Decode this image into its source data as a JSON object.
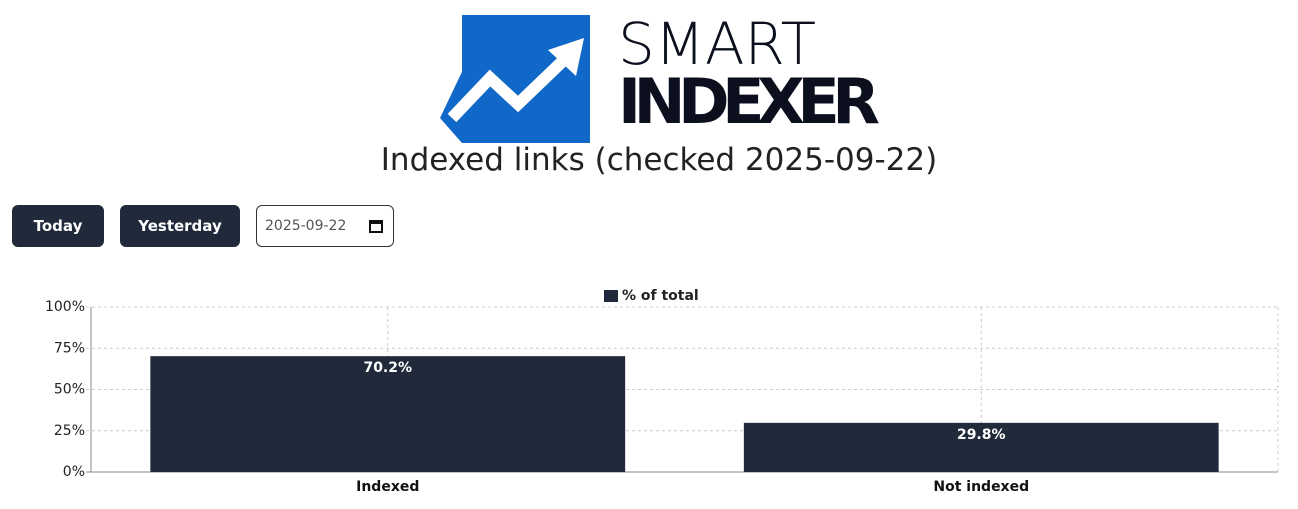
{
  "header": {
    "logo_top": "SMART",
    "logo_bottom": "INDEXER",
    "title": "Indexed links (checked 2025-09-22)"
  },
  "controls": {
    "today": "Today",
    "yesterday": "Yesterday",
    "date": "2025-09-22"
  },
  "chart_data": {
    "type": "bar",
    "categories": [
      "Indexed",
      "Not indexed"
    ],
    "series": [
      {
        "name": "% of total",
        "color": "#212a3a",
        "values": [
          70.2,
          29.8
        ],
        "value_labels": [
          "70.2%",
          "29.8%"
        ]
      }
    ],
    "ylim": [
      0,
      100
    ],
    "yticks": [
      {
        "value": 0,
        "label": "0%"
      },
      {
        "value": 25,
        "label": "25%"
      },
      {
        "value": 50,
        "label": "50%"
      },
      {
        "value": 75,
        "label": "75%"
      },
      {
        "value": 100,
        "label": "100%"
      }
    ],
    "grid": true,
    "legend": "top"
  }
}
